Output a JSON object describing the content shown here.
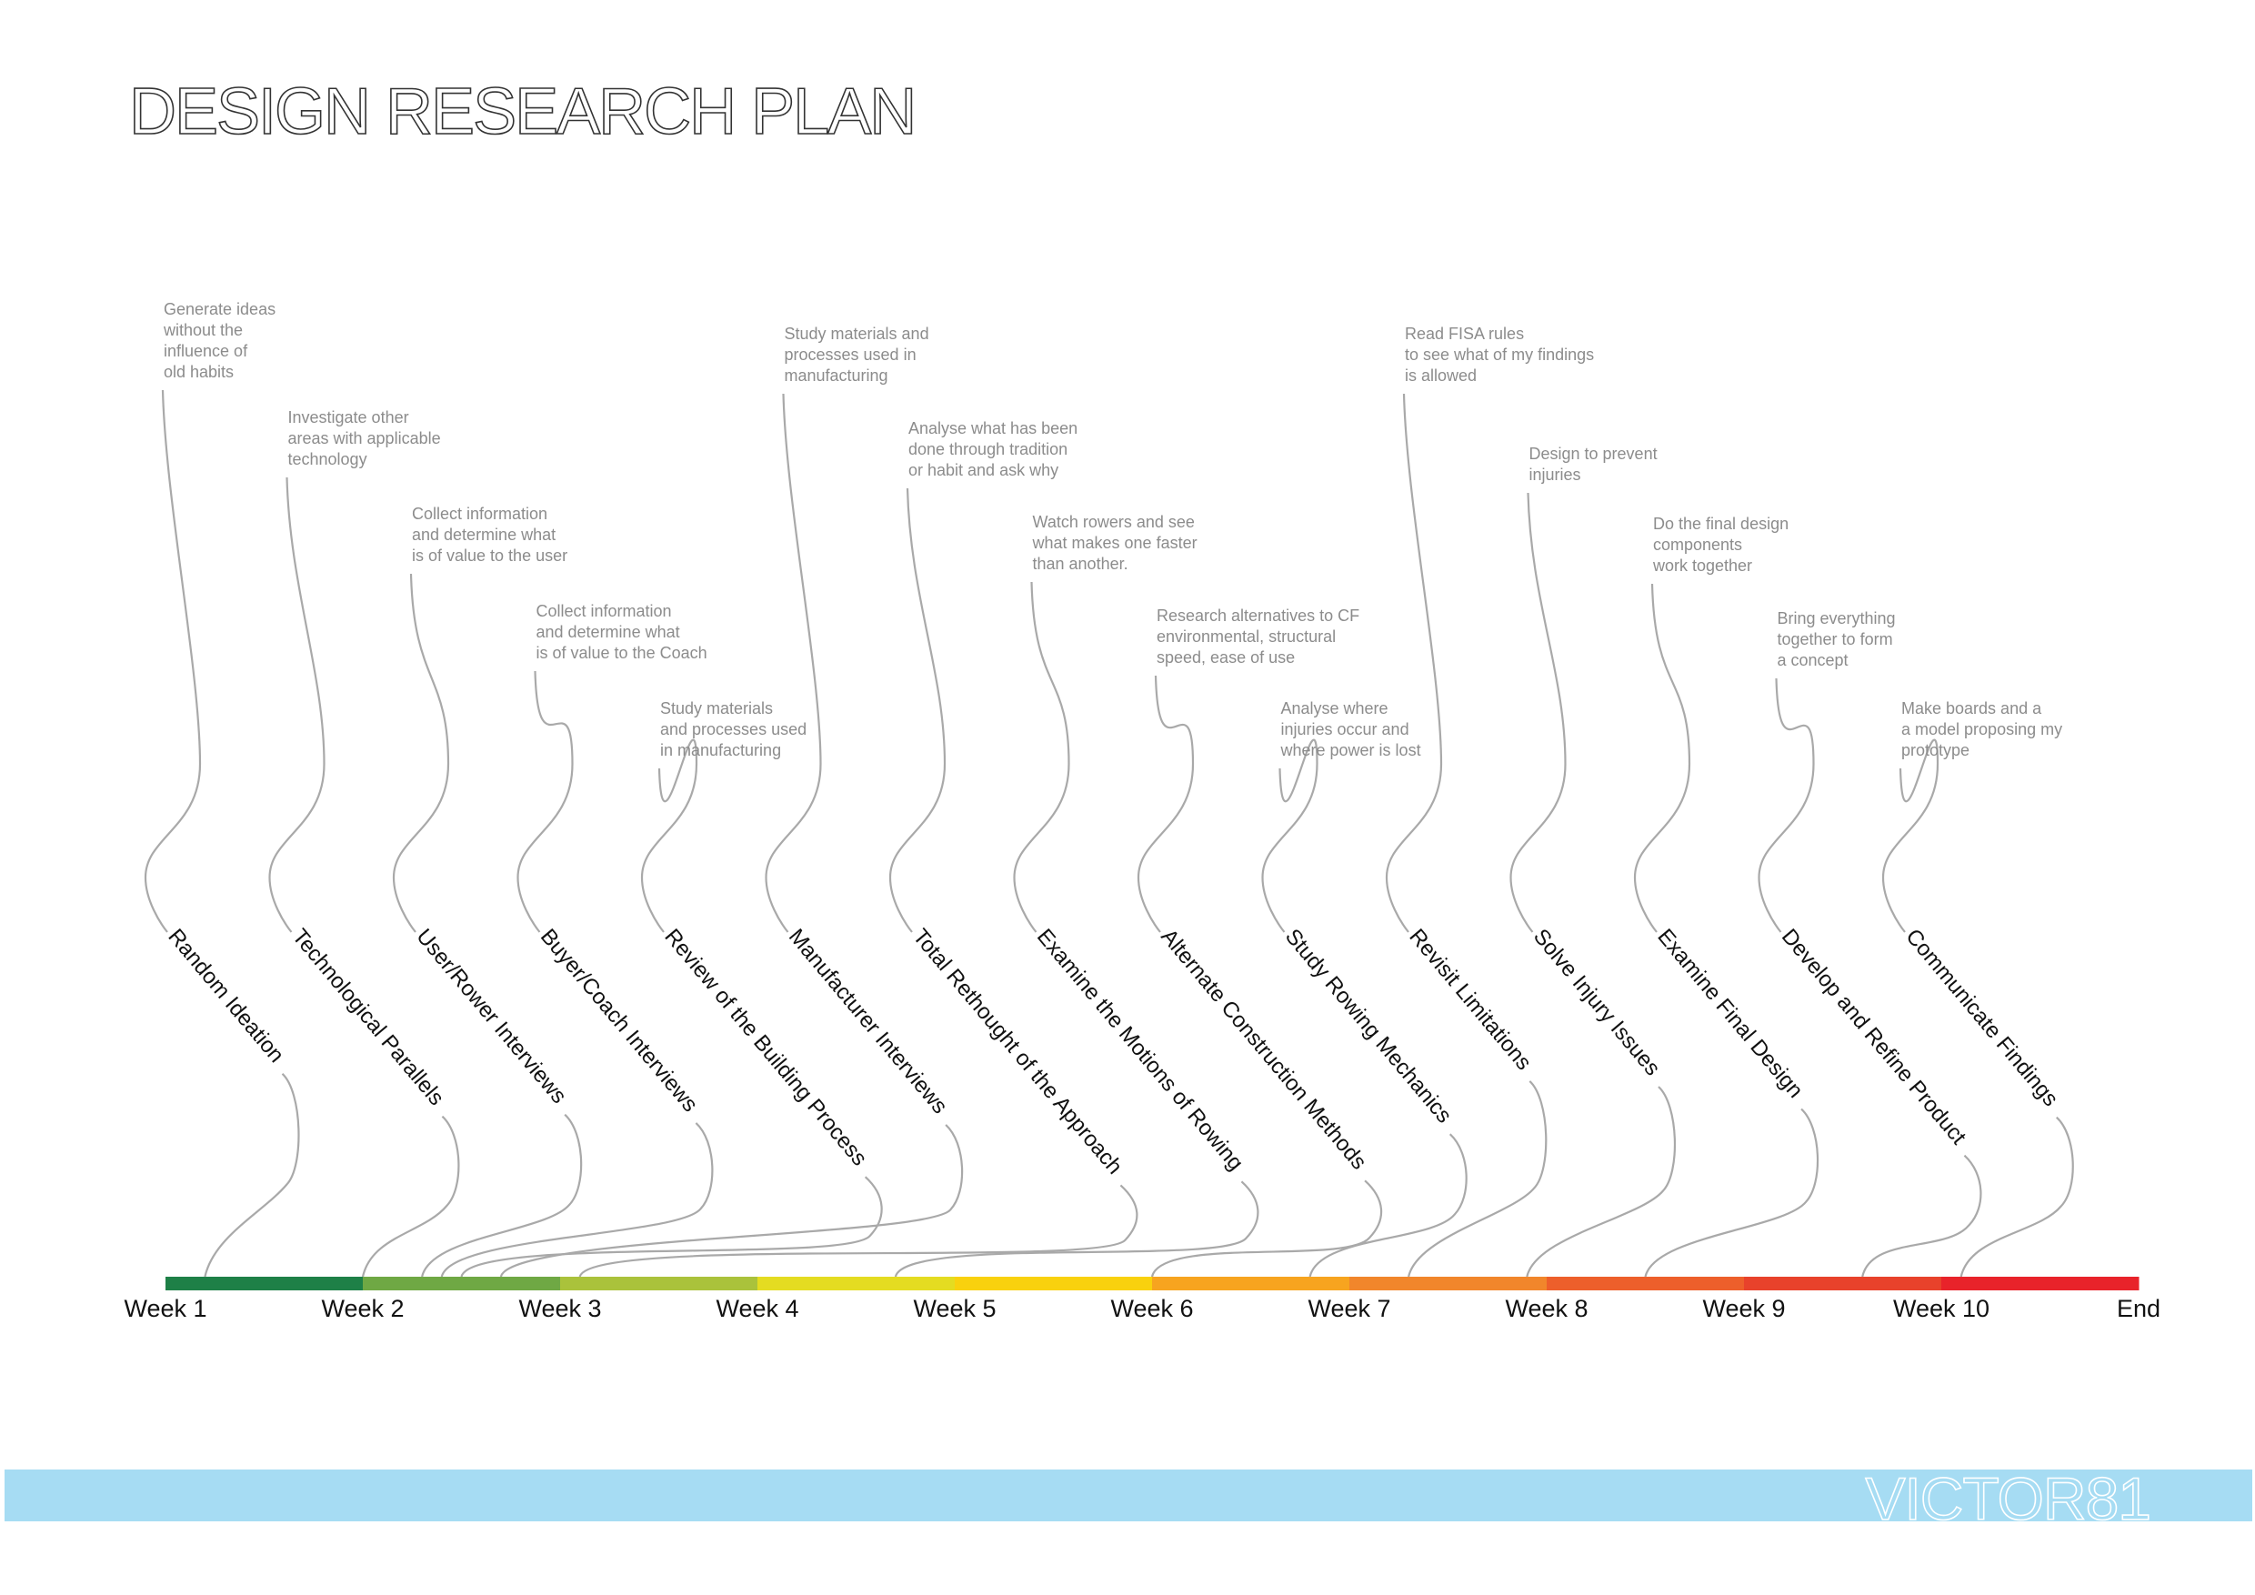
{
  "title": "DESIGN RESEARCH PLAN",
  "footer": {
    "logo": "VICTOR81",
    "band_color": "#a6dcf3"
  },
  "timeline": {
    "weeks": [
      "Week 1",
      "Week 2",
      "Week 3",
      "Week 4",
      "Week 5",
      "Week 6",
      "Week 7",
      "Week 8",
      "Week 9",
      "Week 10",
      "End"
    ],
    "segment_colors": [
      "#1e8047",
      "#6fa844",
      "#aac23b",
      "#e4dc21",
      "#f9d10e",
      "#f7a41f",
      "#f1862b",
      "#ed5f2b",
      "#e8422b",
      "#e8232a"
    ]
  },
  "tasks": [
    {
      "label": "Random Ideation",
      "description": [
        "Generate ideas",
        "without the",
        "influence of",
        "old habits"
      ],
      "start_week": 1.2
    },
    {
      "label": "Technological Parallels",
      "description": [
        "Investigate other",
        "areas with applicable",
        "technology"
      ],
      "start_week": 2.0
    },
    {
      "label": "User/Rower Interviews",
      "description": [
        "Collect information",
        "and determine what",
        "is of value to the user"
      ],
      "start_week": 2.3
    },
    {
      "label": "Buyer/Coach Interviews",
      "description": [
        "Collect information",
        "and determine what",
        "is of value to the Coach"
      ],
      "start_week": 2.4
    },
    {
      "label": "Review of the Building Process",
      "description": [
        "Study materials",
        "and processes used",
        "in manufacturing"
      ],
      "start_week": 2.5
    },
    {
      "label": "Manufacturer Interviews",
      "description": [
        "Study materials and",
        "processes used in",
        "manufacturing"
      ],
      "start_week": 2.7
    },
    {
      "label": "Total Rethought of the Approach",
      "description": [
        "Analyse what has been",
        "done through tradition",
        "or habit and ask why"
      ],
      "start_week": 3.1
    },
    {
      "label": "Examine the Motions of Rowing",
      "description": [
        "Watch rowers and see",
        "what makes one faster",
        "than another."
      ],
      "start_week": 4.7
    },
    {
      "label": "Alternate Construction Methods",
      "description": [
        "Research alternatives to CF",
        "environmental, structural",
        "speed, ease of use"
      ],
      "start_week": 6.0
    },
    {
      "label": "Study Rowing Mechanics",
      "description": [
        "Analyse where",
        "injuries occur and",
        "where power is lost"
      ],
      "start_week": 6.8
    },
    {
      "label": "Revisit Limitations",
      "description": [
        "Read FISA rules",
        "to see what of my findings",
        "is allowed"
      ],
      "start_week": 7.3
    },
    {
      "label": "Solve Injury Issues",
      "description": [
        "Design to prevent",
        "injuries"
      ],
      "start_week": 7.9
    },
    {
      "label": "Examine Final Design",
      "description": [
        "Do the final design",
        "components",
        "work together"
      ],
      "start_week": 8.5
    },
    {
      "label": "Develop and Refine Product",
      "description": [
        "Bring everything",
        "together to form",
        "a concept"
      ],
      "start_week": 9.6
    },
    {
      "label": "Communicate Findings",
      "description": [
        "Make boards and a",
        "a model proposing my",
        "prototype"
      ],
      "start_week": 10.1
    }
  ]
}
